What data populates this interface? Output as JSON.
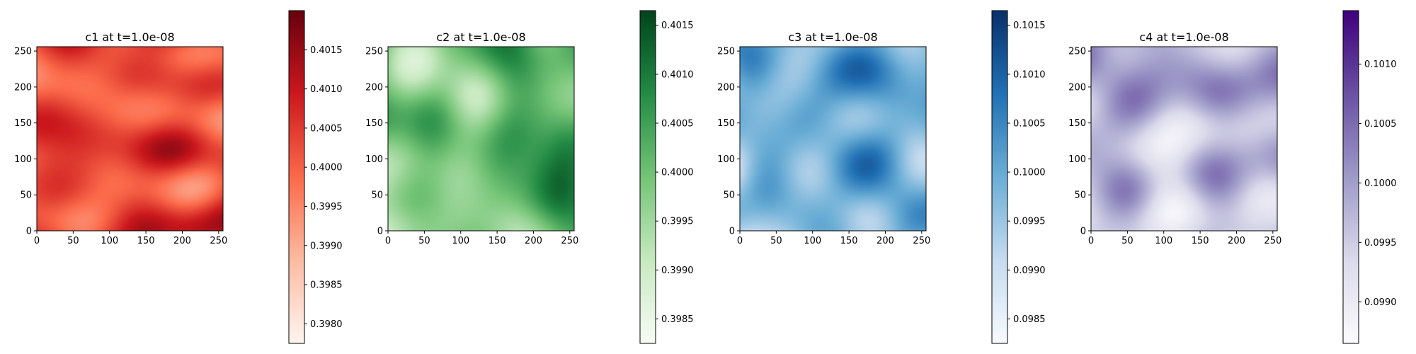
{
  "chart_data": [
    {
      "type": "heatmap",
      "title": "c1 at t=1.0e-08",
      "colormap": "Reds",
      "colors": [
        "#fff5f0",
        "#fcbba1",
        "#fb6a4a",
        "#cb181d",
        "#67000d"
      ],
      "mean_fraction": 0.62,
      "seed": 11,
      "xlim": [
        0,
        256
      ],
      "ylim": [
        0,
        256
      ],
      "xticks": [
        "0",
        "50",
        "100",
        "150",
        "200",
        "250"
      ],
      "yticks": [
        "0",
        "50",
        "100",
        "150",
        "200",
        "250"
      ],
      "colorbar": {
        "range": [
          0.39775,
          0.402
        ],
        "ticks": [
          "0.3980",
          "0.3985",
          "0.3990",
          "0.3995",
          "0.4000",
          "0.4005",
          "0.4010",
          "0.4015"
        ]
      }
    },
    {
      "type": "heatmap",
      "title": "c2 at t=1.0e-08",
      "colormap": "Greens",
      "colors": [
        "#f7fcf5",
        "#c7e9c0",
        "#74c476",
        "#238b45",
        "#00441b"
      ],
      "mean_fraction": 0.5,
      "seed": 23,
      "xlim": [
        0,
        256
      ],
      "ylim": [
        0,
        256
      ],
      "xticks": [
        "0",
        "50",
        "100",
        "150",
        "200",
        "250"
      ],
      "yticks": [
        "0",
        "50",
        "100",
        "150",
        "200",
        "250"
      ],
      "colorbar": {
        "range": [
          0.39825,
          0.40165
        ],
        "ticks": [
          "0.3985",
          "0.3990",
          "0.3995",
          "0.4000",
          "0.4005",
          "0.4010",
          "0.4015"
        ]
      }
    },
    {
      "type": "heatmap",
      "title": "c3 at t=1.0e-08",
      "colormap": "Blues",
      "colors": [
        "#f7fbff",
        "#c6dbef",
        "#6baed6",
        "#2171b5",
        "#08306b"
      ],
      "mean_fraction": 0.45,
      "seed": 37,
      "xlim": [
        0,
        256
      ],
      "ylim": [
        0,
        256
      ],
      "xticks": [
        "0",
        "50",
        "100",
        "150",
        "200",
        "250"
      ],
      "yticks": [
        "0",
        "50",
        "100",
        "150",
        "200",
        "250"
      ],
      "colorbar": {
        "range": [
          0.09825,
          0.10165
        ],
        "ticks": [
          "0.0985",
          "0.0990",
          "0.0995",
          "0.1000",
          "0.1005",
          "0.1010",
          "0.1015"
        ]
      }
    },
    {
      "type": "heatmap",
      "title": "c4 at t=1.0e-08",
      "colormap": "Purples",
      "colors": [
        "#fcfbfd",
        "#dadaeb",
        "#9e9ac8",
        "#6a51a3",
        "#3f007d"
      ],
      "mean_fraction": 0.42,
      "seed": 53,
      "xlim": [
        0,
        256
      ],
      "ylim": [
        0,
        256
      ],
      "xticks": [
        "0",
        "50",
        "100",
        "150",
        "200",
        "250"
      ],
      "yticks": [
        "0",
        "50",
        "100",
        "150",
        "200",
        "250"
      ],
      "colorbar": {
        "range": [
          0.09865,
          0.10145
        ],
        "ticks": [
          "0.0990",
          "0.0995",
          "0.1000",
          "0.1005",
          "0.1010"
        ]
      }
    }
  ]
}
